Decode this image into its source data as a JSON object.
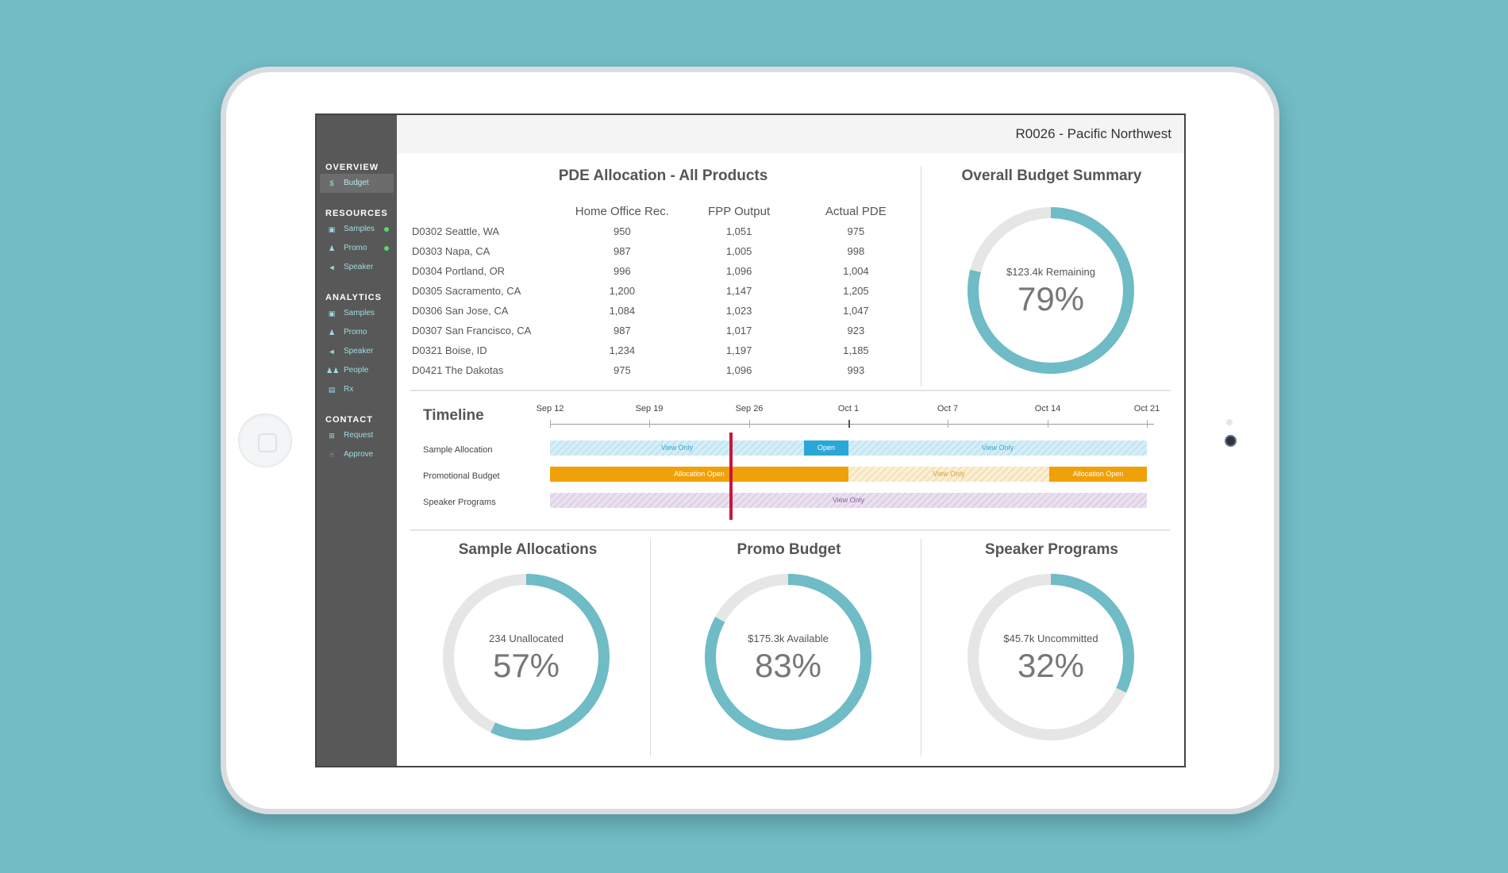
{
  "header": {
    "region": "R0026 - Pacific Northwest"
  },
  "sidebar": {
    "sections": [
      {
        "title": "OVERVIEW",
        "items": [
          {
            "label": "Budget",
            "icon": "dollar-icon",
            "active": true
          }
        ]
      },
      {
        "title": "RESOURCES",
        "items": [
          {
            "label": "Samples",
            "icon": "briefcase-icon",
            "dot": true
          },
          {
            "label": "Promo",
            "icon": "person-icon",
            "dot": true
          },
          {
            "label": "Speaker",
            "icon": "megaphone-icon"
          }
        ]
      },
      {
        "title": "ANALYTICS",
        "items": [
          {
            "label": "Samples",
            "icon": "briefcase-icon"
          },
          {
            "label": "Promo",
            "icon": "person-icon"
          },
          {
            "label": "Speaker",
            "icon": "megaphone-icon"
          },
          {
            "label": "People",
            "icon": "people-icon"
          },
          {
            "label": "Rx",
            "icon": "document-icon"
          }
        ]
      },
      {
        "title": "CONTACT",
        "items": [
          {
            "label": "Request",
            "icon": "plus-square-icon"
          },
          {
            "label": "Approve",
            "icon": "thumbs-up-icon"
          }
        ]
      }
    ]
  },
  "pde": {
    "title": "PDE Allocation - All Products",
    "columns": [
      "",
      "Home Office Rec.",
      "FPP Output",
      "Actual PDE"
    ],
    "rows": [
      [
        "D0302 Seattle, WA",
        "950",
        "1,051",
        "975"
      ],
      [
        "D0303 Napa, CA",
        "987",
        "1,005",
        "998"
      ],
      [
        "D0304 Portland, OR",
        "996",
        "1,096",
        "1,004"
      ],
      [
        "D0305 Sacramento, CA",
        "1,200",
        "1,147",
        "1,205"
      ],
      [
        "D0306 San Jose, CA",
        "1,084",
        "1,023",
        "1,047"
      ],
      [
        "D0307 San Francisco, CA",
        "987",
        "1,017",
        "923"
      ],
      [
        "D0321 Boise, ID",
        "1,234",
        "1,197",
        "1,185"
      ],
      [
        "D0421 The Dakotas",
        "975",
        "1,096",
        "993"
      ]
    ]
  },
  "summary": {
    "title": "Overall Budget Summary",
    "label": "$123.4k Remaining",
    "percent_text": "79%",
    "percent": 79
  },
  "timeline": {
    "title": "Timeline",
    "ticks": [
      "Sep 12",
      "Sep 19",
      "Sep 26",
      "Oct 1",
      "Oct 7",
      "Oct 14",
      "Oct 21"
    ],
    "rows": [
      {
        "label": "Sample Allocation",
        "segments": [
          {
            "label": "View Only",
            "style": "hatch-blue"
          },
          {
            "label": "Open",
            "style": "solid-blue"
          },
          {
            "label": "View Only",
            "style": "hatch-blue"
          }
        ]
      },
      {
        "label": "Promotional Budget",
        "segments": [
          {
            "label": "Allocation Open",
            "style": "solid-orange"
          },
          {
            "label": "View Only",
            "style": "hatch-orange"
          },
          {
            "label": "Allocation Open",
            "style": "solid-orange"
          }
        ]
      },
      {
        "label": "Speaker Programs",
        "segments": [
          {
            "label": "View Only",
            "style": "hatch-purple"
          }
        ]
      }
    ]
  },
  "cards": [
    {
      "title": "Sample Allocations",
      "label": "234 Unallocated",
      "percent_text": "57%",
      "percent": 57
    },
    {
      "title": "Promo Budget",
      "label": "$175.3k Available",
      "percent_text": "83%",
      "percent": 83
    },
    {
      "title": "Speaker Programs",
      "label": "$45.7k Uncommitted",
      "percent_text": "32%",
      "percent": 32
    }
  ],
  "colors": {
    "accent": "#6fbbc6",
    "track": "#e6e6e6",
    "sidebar": "#585858",
    "today_marker": "#c8163d"
  }
}
